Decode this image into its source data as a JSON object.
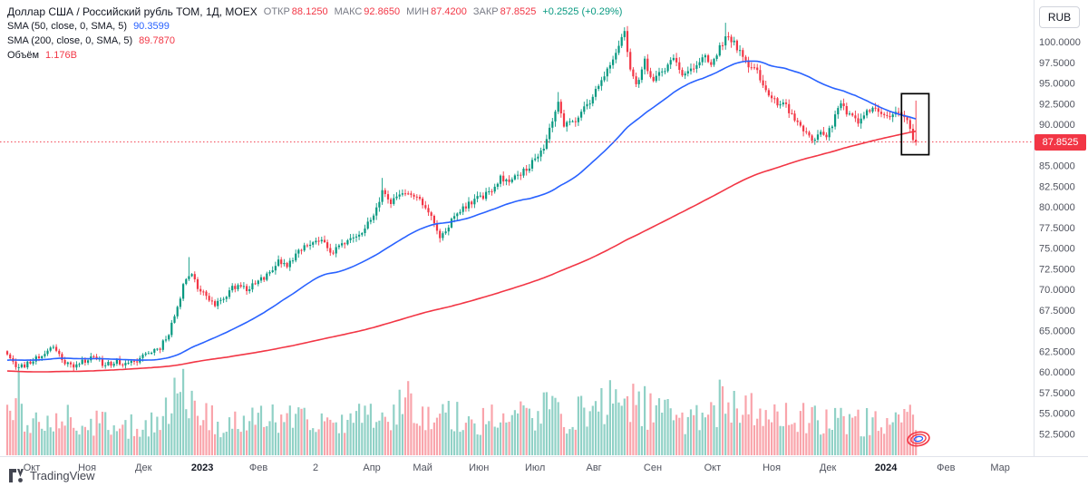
{
  "header": {
    "symbol_title": "Доллар США / Российский рубль ТОМ, 1Д, MOEX",
    "ohlc": {
      "open_label": "ОТКР",
      "open": "88.1250",
      "high_label": "МАКС",
      "high": "92.8650",
      "low_label": "МИН",
      "low": "87.4200",
      "close_label": "ЗАКР",
      "close": "87.8525",
      "change": "+0.2525 (+0.29%)"
    },
    "indicators": [
      {
        "label": "SMA (50, close, 0, SMA, 5)",
        "value": "90.3599",
        "color": "#2962ff"
      },
      {
        "label": "SMA (200, close, 0, SMA, 5)",
        "value": "89.7870",
        "color": "#f23645"
      }
    ],
    "volume_label": "Объём",
    "volume_value": "1.176B",
    "currency_button": "RUB"
  },
  "price_axis": {
    "max": 100,
    "min": 52.5,
    "step": 2.5,
    "decimals": 4,
    "last_price": "87.8525"
  },
  "time_axis": {
    "ticks": [
      {
        "label": "Окт",
        "i": 8.5
      },
      {
        "label": "Ноя",
        "i": 27.7
      },
      {
        "label": "Дек",
        "i": 47.2
      },
      {
        "label": "2023",
        "i": 67.6,
        "bold": true
      },
      {
        "label": "Фев",
        "i": 87.1
      },
      {
        "label": "2",
        "i": 106.9
      },
      {
        "label": "Апр",
        "i": 126.4
      },
      {
        "label": "Май",
        "i": 144
      },
      {
        "label": "Июн",
        "i": 163.5
      },
      {
        "label": "Июл",
        "i": 183
      },
      {
        "label": "Авг",
        "i": 203.4
      },
      {
        "label": "Сен",
        "i": 223.8
      },
      {
        "label": "Окт",
        "i": 244.5
      },
      {
        "label": "Ноя",
        "i": 265
      },
      {
        "label": "Дек",
        "i": 284.5
      },
      {
        "label": "2024",
        "i": 304.6,
        "bold": true
      },
      {
        "label": "Фев",
        "i": 325.4
      },
      {
        "label": "Мар",
        "i": 344.2
      }
    ]
  },
  "footer": {
    "logo_text": "TradingView"
  },
  "icons": {
    "logo": "tradingview-mark",
    "stamp": "oval-scribble-stamp"
  },
  "colors": {
    "up": "#089981",
    "down": "#f23645",
    "vol_up": "rgba(8,153,129,0.45)",
    "vol_down": "rgba(242,54,69,0.45)",
    "sma50": "#2962ff",
    "sma200": "#f23645",
    "price_line": "#f23645",
    "axis_text": "#50535e",
    "grid": "#e0e3eb",
    "annotation": "#000000"
  },
  "chart_data": {
    "type": "candlestick+volume",
    "symbol": "Доллар США / Российский рубль ТОМ",
    "exchange": "MOEX",
    "interval": "1Д",
    "ylim": [
      52.5,
      100
    ],
    "num_candles": 316,
    "noise_seed": 11,
    "last_candle": {
      "open": 88.125,
      "high": 92.865,
      "low": 87.42,
      "close": 87.8525
    },
    "last_volume_display": "1.176B",
    "overlays": [
      {
        "name": "SMA",
        "period": 50,
        "current_value": 90.3599
      },
      {
        "name": "SMA",
        "period": 200,
        "current_value": 89.787
      }
    ],
    "close_anchors": [
      [
        0,
        62.3
      ],
      [
        4,
        60.4
      ],
      [
        8,
        61.3
      ],
      [
        12,
        62.0
      ],
      [
        16,
        63.1
      ],
      [
        19,
        61.5
      ],
      [
        22,
        60.7
      ],
      [
        26,
        61.4
      ],
      [
        30,
        61.6
      ],
      [
        34,
        60.9
      ],
      [
        38,
        61.3
      ],
      [
        41,
        60.8
      ],
      [
        44,
        61.1
      ],
      [
        47,
        62.0
      ],
      [
        50,
        62.5
      ],
      [
        53,
        63.0
      ],
      [
        56,
        64.8
      ],
      [
        59,
        67.8
      ],
      [
        62,
        71.5
      ],
      [
        64,
        72.2
      ],
      [
        66,
        70.2
      ],
      [
        69,
        69.2
      ],
      [
        72,
        68.2
      ],
      [
        76,
        69.4
      ],
      [
        80,
        70.7
      ],
      [
        83,
        69.9
      ],
      [
        86,
        70.6
      ],
      [
        90,
        71.8
      ],
      [
        94,
        73.3
      ],
      [
        97,
        72.6
      ],
      [
        101,
        74.8
      ],
      [
        105,
        75.6
      ],
      [
        109,
        75.9
      ],
      [
        112,
        74.4
      ],
      [
        116,
        75.4
      ],
      [
        120,
        76.6
      ],
      [
        124,
        77.3
      ],
      [
        128,
        79.6
      ],
      [
        130,
        81.7
      ],
      [
        133,
        80.6
      ],
      [
        137,
        81.9
      ],
      [
        141,
        81.3
      ],
      [
        143,
        80.9
      ],
      [
        147,
        78.8
      ],
      [
        150,
        76.0
      ],
      [
        154,
        78.4
      ],
      [
        158,
        79.9
      ],
      [
        162,
        80.8
      ],
      [
        167,
        81.6
      ],
      [
        171,
        83.4
      ],
      [
        175,
        83.2
      ],
      [
        179,
        84.4
      ],
      [
        182,
        85.3
      ],
      [
        186,
        87.4
      ],
      [
        189,
        90.6
      ],
      [
        191,
        92.9
      ],
      [
        193,
        90.0
      ],
      [
        197,
        90.5
      ],
      [
        200,
        91.8
      ],
      [
        203,
        93.2
      ],
      [
        206,
        95.7
      ],
      [
        209,
        97.1
      ],
      [
        212,
        99.3
      ],
      [
        214,
        101.2
      ],
      [
        216,
        96.5
      ],
      [
        218,
        94.7
      ],
      [
        221,
        97.6
      ],
      [
        224,
        95.1
      ],
      [
        227,
        96.5
      ],
      [
        231,
        97.7
      ],
      [
        234,
        96.1
      ],
      [
        238,
        96.8
      ],
      [
        242,
        98.3
      ],
      [
        244,
        97.1
      ],
      [
        247,
        99.2
      ],
      [
        249,
        100.6
      ],
      [
        252,
        99.9
      ],
      [
        256,
        97.4
      ],
      [
        259,
        96.9
      ],
      [
        262,
        94.8
      ],
      [
        264,
        93.4
      ],
      [
        267,
        92.6
      ],
      [
        270,
        92.1
      ],
      [
        273,
        90.4
      ],
      [
        277,
        88.8
      ],
      [
        280,
        88.1
      ],
      [
        282,
        88.9
      ],
      [
        284,
        88.6
      ],
      [
        286,
        90.0
      ],
      [
        289,
        92.6
      ],
      [
        292,
        91.0
      ],
      [
        295,
        90.1
      ],
      [
        298,
        91.4
      ],
      [
        301,
        92.2
      ],
      [
        304,
        91.2
      ],
      [
        306,
        90.6
      ],
      [
        309,
        91.5
      ],
      [
        311,
        91.0
      ],
      [
        313,
        89.6
      ],
      [
        314,
        88.3
      ],
      [
        315,
        87.85
      ]
    ],
    "wick_overrides": [
      {
        "i": 4,
        "low": 60.05
      },
      {
        "i": 63,
        "high": 73.9
      },
      {
        "i": 130,
        "high": 83.5
      },
      {
        "i": 150,
        "low": 75.7
      },
      {
        "i": 191,
        "high": 93.9
      },
      {
        "i": 214,
        "high": 101.75
      },
      {
        "i": 249,
        "high": 102.3
      }
    ],
    "pre_history_anchors": [
      [
        -200,
        64
      ],
      [
        -160,
        57
      ],
      [
        -120,
        59
      ],
      [
        -80,
        60.5
      ],
      [
        -40,
        61
      ],
      [
        -1,
        62
      ]
    ],
    "volume_profile": [
      [
        0,
        0.5
      ],
      [
        3,
        0.95
      ],
      [
        6,
        0.5
      ],
      [
        12,
        0.4
      ],
      [
        18,
        0.55
      ],
      [
        24,
        0.38
      ],
      [
        32,
        0.42
      ],
      [
        40,
        0.35
      ],
      [
        48,
        0.42
      ],
      [
        56,
        0.6
      ],
      [
        60,
        0.9
      ],
      [
        64,
        0.8
      ],
      [
        68,
        0.5
      ],
      [
        76,
        0.42
      ],
      [
        84,
        0.45
      ],
      [
        92,
        0.5
      ],
      [
        100,
        0.45
      ],
      [
        108,
        0.42
      ],
      [
        116,
        0.48
      ],
      [
        124,
        0.5
      ],
      [
        128,
        0.65
      ],
      [
        134,
        0.55
      ],
      [
        140,
        0.8
      ],
      [
        145,
        0.5
      ],
      [
        150,
        0.62
      ],
      [
        158,
        0.45
      ],
      [
        166,
        0.5
      ],
      [
        174,
        0.52
      ],
      [
        182,
        0.55
      ],
      [
        188,
        0.62
      ],
      [
        194,
        0.5
      ],
      [
        202,
        0.6
      ],
      [
        208,
        0.68
      ],
      [
        213,
        0.85
      ],
      [
        218,
        0.7
      ],
      [
        226,
        0.55
      ],
      [
        234,
        0.5
      ],
      [
        242,
        0.58
      ],
      [
        248,
        0.72
      ],
      [
        254,
        0.6
      ],
      [
        262,
        0.55
      ],
      [
        270,
        0.5
      ],
      [
        278,
        0.48
      ],
      [
        286,
        0.52
      ],
      [
        294,
        0.46
      ],
      [
        302,
        0.42
      ],
      [
        308,
        0.45
      ],
      [
        313,
        0.55
      ],
      [
        315,
        0.5
      ]
    ],
    "annotation_box": {
      "start_index": 310,
      "end_index": 319.5,
      "top_price": 93.7,
      "bottom_price": 86.3
    }
  }
}
